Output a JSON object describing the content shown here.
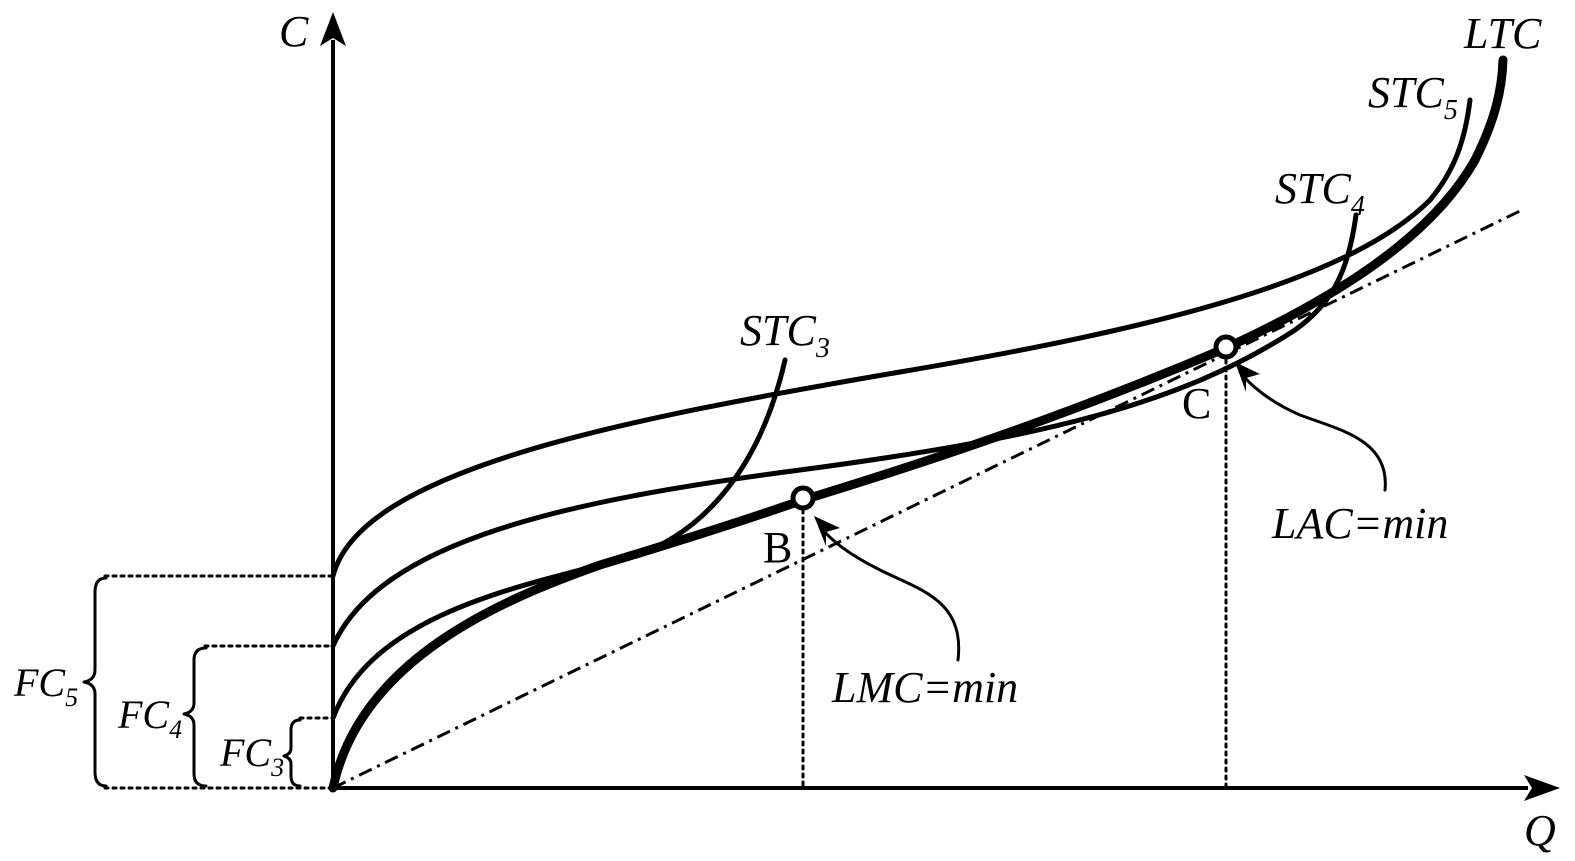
{
  "axes": {
    "y_label": "C",
    "x_label": "Q"
  },
  "curves": {
    "ltc": "LTC",
    "stc3": {
      "base": "STC",
      "sub": "3"
    },
    "stc4": {
      "base": "STC",
      "sub": "4"
    },
    "stc5": {
      "base": "STC",
      "sub": "5"
    }
  },
  "fixed_costs": {
    "fc3": {
      "base": "FC",
      "sub": "3"
    },
    "fc4": {
      "base": "FC",
      "sub": "4"
    },
    "fc5": {
      "base": "FC",
      "sub": "5"
    }
  },
  "points": {
    "b": "B",
    "c": "C"
  },
  "annotations": {
    "lmc": "LMC=min",
    "lac": "LAC=min"
  }
}
